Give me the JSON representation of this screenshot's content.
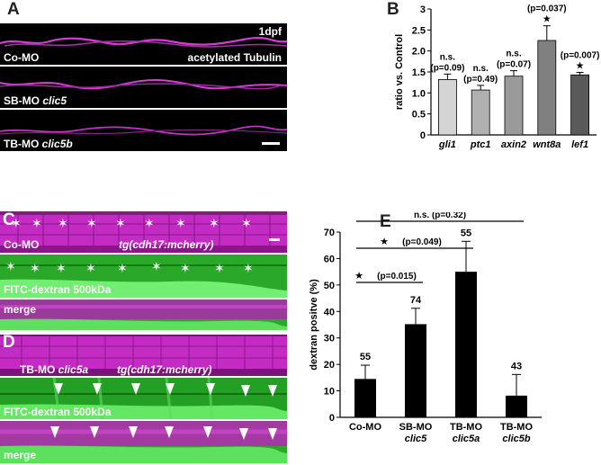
{
  "panel_letters": {
    "a": "A",
    "b": "B",
    "c": "C",
    "d": "D",
    "e": "E"
  },
  "panel_a": {
    "time_label": "1dpf",
    "stain_label": "acetylated Tubulin",
    "rows": [
      {
        "prefix": "Co-MO",
        "gene": ""
      },
      {
        "prefix": "SB-MO",
        "gene": "clic5"
      },
      {
        "prefix": "TB-MO",
        "gene": "clic5b"
      }
    ],
    "colors": {
      "tubulin": "#d63bd6",
      "background": "#000000"
    }
  },
  "panel_c": {
    "mo_label": "Co-MO",
    "transgene": "tg(cdh17:mcherry)",
    "dextran_label": "FITC-dextran 500kDa",
    "merge_label": "merge",
    "star_glyph": "✶",
    "colors": {
      "mcherry": "#c42ac4",
      "fitc": "#1fd41f"
    }
  },
  "panel_d": {
    "mo_prefix": "TB-MO",
    "mo_gene": "clic5a",
    "transgene": "tg(cdh17:mcherry)",
    "dextran_label": "FITC-dextran 500kDa",
    "merge_label": "merge"
  },
  "chart_data": [
    {
      "type": "bar",
      "ylabel": "ratio vs. Control",
      "ylim": [
        0,
        3
      ],
      "yticks": [
        "0",
        "0.5",
        "1.0",
        "1.5",
        "2.0",
        "2.5",
        "3"
      ],
      "categories": [
        "gli1",
        "ptc1",
        "axin2",
        "wnt8a",
        "lef1"
      ],
      "values": [
        1.32,
        1.07,
        1.4,
        2.25,
        1.43
      ],
      "errors": [
        0.13,
        0.11,
        0.13,
        0.35,
        0.06
      ],
      "stats": [
        {
          "sig": "n.s.",
          "p": "(p=0.09)",
          "star": ""
        },
        {
          "sig": "n.s.",
          "p": "(p=0.49)",
          "star": ""
        },
        {
          "sig": "n.s.",
          "p": "(p=0.07)",
          "star": ""
        },
        {
          "sig": "",
          "p": "(p=0.037)",
          "star": "★"
        },
        {
          "sig": "",
          "p": "(p=0.007)",
          "star": "★"
        }
      ],
      "colors": [
        "#d4d4d4",
        "#b0b0b0",
        "#9a9a9a",
        "#808080",
        "#5a5a5a"
      ]
    },
    {
      "type": "bar",
      "ylabel": "dextran positve (%)",
      "ylim": [
        0,
        70
      ],
      "yticks": [
        "0",
        "10",
        "20",
        "30",
        "40",
        "50",
        "60",
        "70"
      ],
      "categories": [
        {
          "top": "Co-MO",
          "gene": ""
        },
        {
          "top": "SB-MO",
          "gene": "clic5"
        },
        {
          "top": "TB-MO",
          "gene": "clic5a"
        },
        {
          "top": "TB-MO",
          "gene": "clic5b"
        }
      ],
      "values": [
        14.5,
        35.2,
        55.0,
        8.2
      ],
      "errors": [
        5.2,
        6.0,
        11.5,
        8.0
      ],
      "counts": [
        "55",
        "74",
        "55",
        "43"
      ],
      "comparisons": [
        {
          "text": "n.s. (p=0.32)",
          "from": 0,
          "to": 3,
          "star": ""
        },
        {
          "text": "(p=0.049)",
          "from": 0,
          "to": 2,
          "star": "★"
        },
        {
          "text": "(p=0.015)",
          "from": 0,
          "to": 1,
          "star": "★"
        }
      ],
      "bar_color": "#000000"
    }
  ]
}
